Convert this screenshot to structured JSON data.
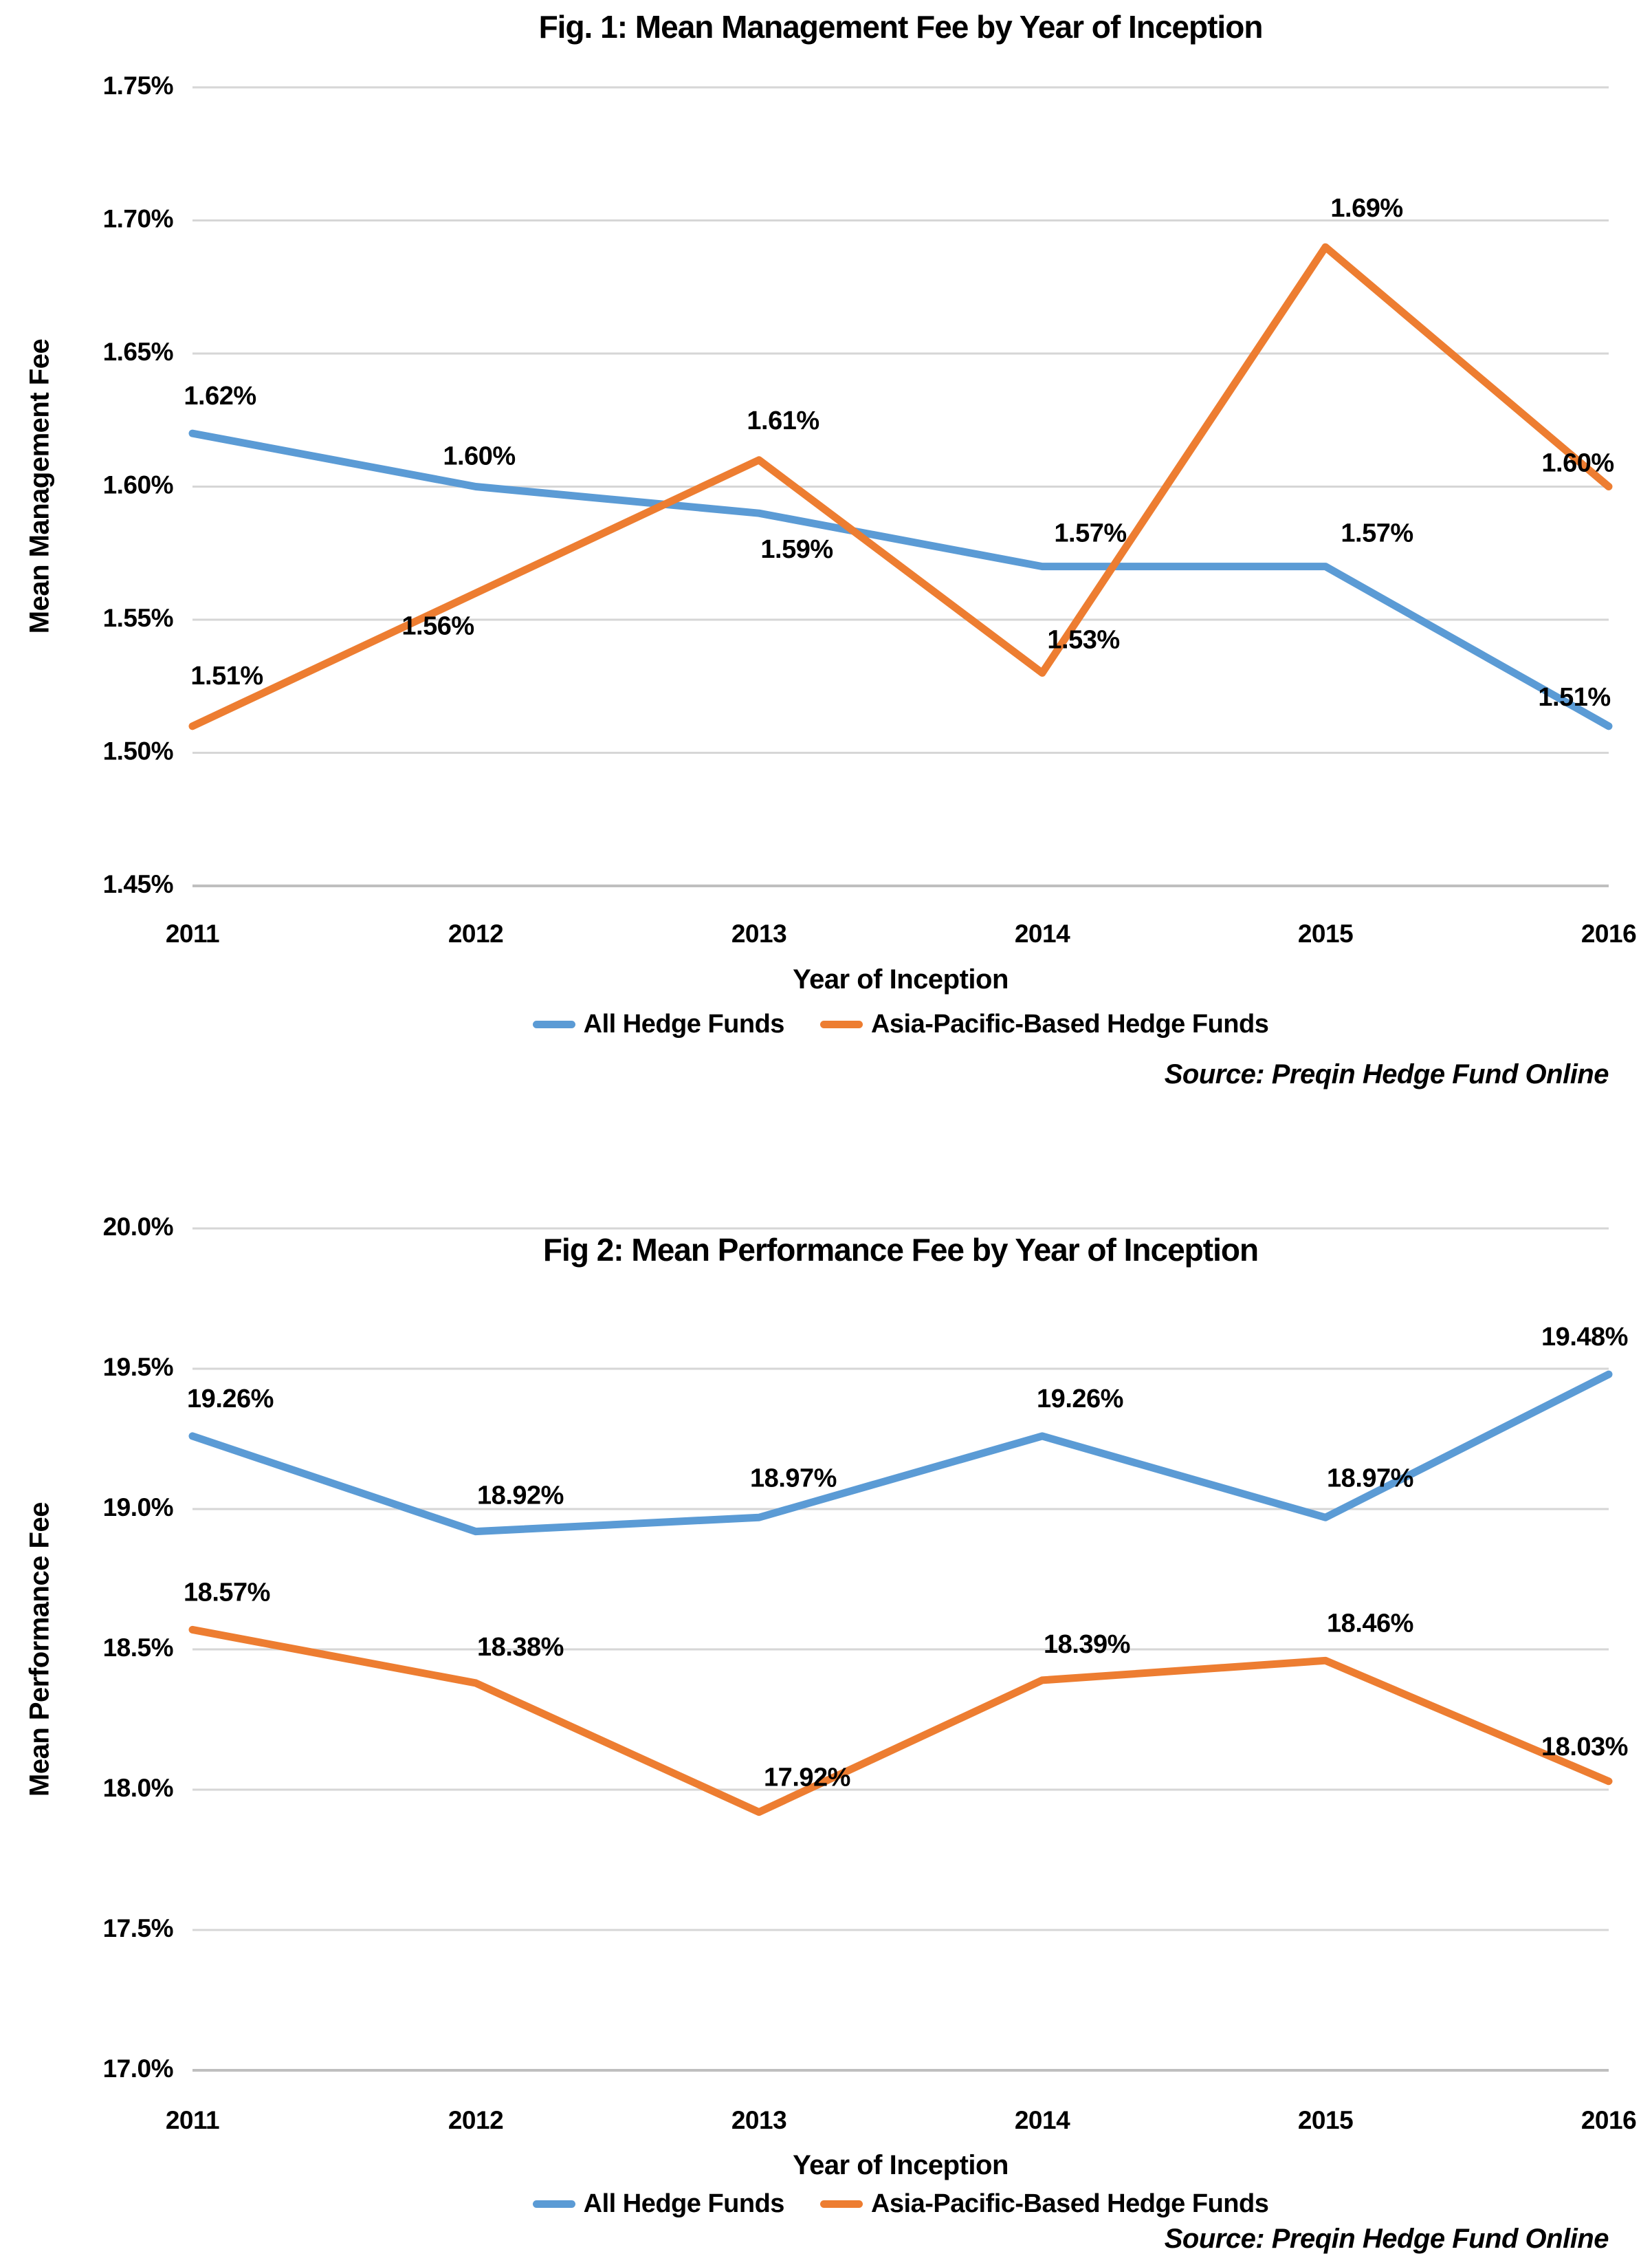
{
  "chart_data": [
    {
      "type": "line",
      "title": "Fig. 1: Mean Management Fee by Year of Inception",
      "xlabel": "Year of Inception",
      "ylabel": "Mean Management Fee",
      "categories": [
        "2011",
        "2012",
        "2013",
        "2014",
        "2015",
        "2016"
      ],
      "series": [
        {
          "name": "All Hedge Funds",
          "color": "#5B9BD5",
          "values": [
            1.62,
            1.6,
            1.59,
            1.57,
            1.57,
            1.51
          ],
          "labels": [
            "1.62%",
            "1.60%",
            "1.59%",
            "1.57%",
            "1.57%",
            "1.51%"
          ]
        },
        {
          "name": "Asia-Pacific-Based Hedge Funds",
          "color": "#ED7D31",
          "values": [
            1.51,
            1.56,
            1.61,
            1.53,
            1.69,
            1.6
          ],
          "labels": [
            "1.51%",
            "1.56%",
            "1.61%",
            "1.53%",
            "1.69%",
            "1.60%"
          ]
        }
      ],
      "y_axis": {
        "min": 1.45,
        "max": 1.75,
        "step": 0.05,
        "tick_labels": [
          "1.75%",
          "1.70%",
          "1.65%",
          "1.60%",
          "1.55%",
          "1.50%",
          "1.45%"
        ]
      },
      "grid": true,
      "legend_position": "bottom",
      "source": "Source: Preqin Hedge Fund Online",
      "grid_color": "#D6D6D6",
      "axis_line_color": "#BFBFBF"
    },
    {
      "type": "line",
      "title": "Fig 2: Mean Performance Fee by Year of Inception",
      "xlabel": "Year of Inception",
      "ylabel": "Mean Performance Fee",
      "categories": [
        "2011",
        "2012",
        "2013",
        "2014",
        "2015",
        "2016"
      ],
      "series": [
        {
          "name": "All Hedge Funds",
          "color": "#5B9BD5",
          "values": [
            19.26,
            18.92,
            18.97,
            19.26,
            18.97,
            19.48
          ],
          "labels": [
            "19.26%",
            "18.92%",
            "18.97%",
            "19.26%",
            "18.97%",
            "19.48%"
          ]
        },
        {
          "name": "Asia-Pacific-Based Hedge Funds",
          "color": "#ED7D31",
          "values": [
            18.57,
            18.38,
            17.92,
            18.39,
            18.46,
            18.03
          ],
          "labels": [
            "18.57%",
            "18.38%",
            "17.92%",
            "18.39%",
            "18.46%",
            "18.03%"
          ]
        }
      ],
      "y_axis": {
        "min": 17.0,
        "max": 20.0,
        "step": 0.5,
        "tick_labels": [
          "20.0%",
          "19.5%",
          "19.0%",
          "18.5%",
          "18.0%",
          "17.5%",
          "17.0%"
        ]
      },
      "grid": true,
      "legend_position": "bottom",
      "source": "Source: Preqin Hedge Fund Online",
      "grid_color": "#D6D6D6",
      "axis_line_color": "#BFBFBF"
    }
  ]
}
